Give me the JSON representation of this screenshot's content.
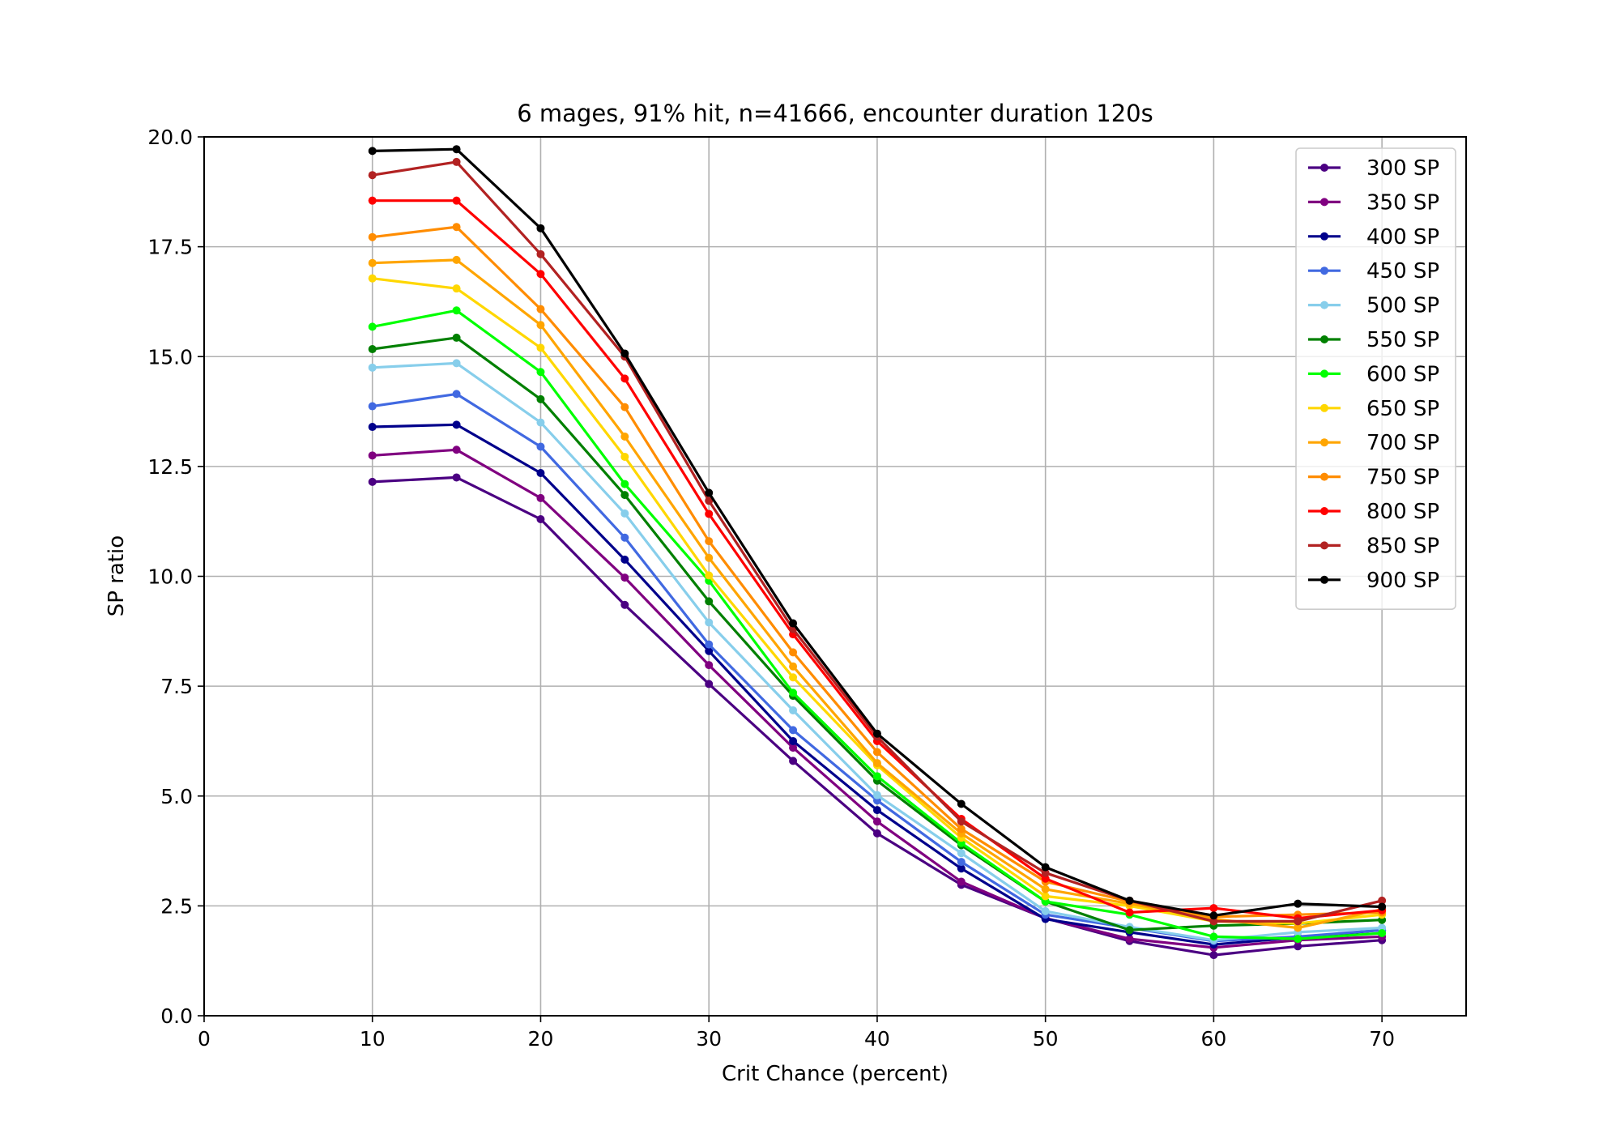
{
  "chart_data": {
    "type": "line",
    "title": "6 mages, 91% hit, n=41666, encounter duration 120s",
    "xlabel": "Crit Chance (percent)",
    "ylabel": "SP ratio",
    "xlim": [
      0,
      75
    ],
    "ylim": [
      0,
      20
    ],
    "xticks": [
      0,
      10,
      20,
      30,
      40,
      50,
      60,
      70
    ],
    "yticks": [
      0.0,
      2.5,
      5.0,
      7.5,
      10.0,
      12.5,
      15.0,
      17.5,
      20.0
    ],
    "ytick_labels": [
      "0.0",
      "2.5",
      "5.0",
      "7.5",
      "10.0",
      "12.5",
      "15.0",
      "17.5",
      "20.0"
    ],
    "grid": true,
    "legend_position": "upper-right",
    "x": [
      10,
      15,
      20,
      25,
      30,
      35,
      40,
      45,
      50,
      55,
      60,
      65,
      70
    ],
    "series": [
      {
        "name": "300 SP",
        "color": "#4b0082",
        "values": [
          12.15,
          12.25,
          11.3,
          9.35,
          7.55,
          5.8,
          4.15,
          2.98,
          2.22,
          1.7,
          1.38,
          1.58,
          1.72
        ]
      },
      {
        "name": "350 SP",
        "color": "#800080",
        "values": [
          12.75,
          12.88,
          11.78,
          9.97,
          7.98,
          6.1,
          4.42,
          3.05,
          2.22,
          1.75,
          1.55,
          1.72,
          1.8
        ]
      },
      {
        "name": "400 SP",
        "color": "#00008b",
        "values": [
          13.4,
          13.45,
          12.35,
          10.38,
          8.3,
          6.25,
          4.68,
          3.35,
          2.2,
          1.9,
          1.62,
          1.78,
          1.95
        ]
      },
      {
        "name": "450 SP",
        "color": "#4169e1",
        "values": [
          13.87,
          14.15,
          12.95,
          10.88,
          8.45,
          6.5,
          4.9,
          3.5,
          2.3,
          2.0,
          1.7,
          1.8,
          1.95
        ]
      },
      {
        "name": "500 SP",
        "color": "#87ceeb",
        "values": [
          14.75,
          14.85,
          13.5,
          11.43,
          8.95,
          6.95,
          5.02,
          3.7,
          2.38,
          2.02,
          1.72,
          1.9,
          2.0
        ]
      },
      {
        "name": "550 SP",
        "color": "#008000",
        "values": [
          15.17,
          15.43,
          14.03,
          11.85,
          9.43,
          7.28,
          5.35,
          3.88,
          2.6,
          1.95,
          2.05,
          2.1,
          2.18
        ]
      },
      {
        "name": "600 SP",
        "color": "#00ff00",
        "values": [
          15.68,
          16.05,
          14.65,
          12.1,
          9.9,
          7.35,
          5.45,
          3.93,
          2.6,
          2.3,
          1.8,
          1.75,
          1.88
        ]
      },
      {
        "name": "650 SP",
        "color": "#ffd700",
        "values": [
          16.78,
          16.55,
          15.2,
          12.72,
          10.02,
          7.7,
          5.7,
          4.05,
          2.72,
          2.5,
          2.15,
          2.1,
          2.3
        ]
      },
      {
        "name": "700 SP",
        "color": "#ffa500",
        "values": [
          17.13,
          17.2,
          15.72,
          13.18,
          10.42,
          7.95,
          5.75,
          4.15,
          2.88,
          2.55,
          2.2,
          2.0,
          2.42
        ]
      },
      {
        "name": "750 SP",
        "color": "#ff8c00",
        "values": [
          17.72,
          17.95,
          16.08,
          13.85,
          10.8,
          8.27,
          6.0,
          4.25,
          3.05,
          2.6,
          2.25,
          2.3,
          2.35
        ]
      },
      {
        "name": "800 SP",
        "color": "#ff0000",
        "values": [
          18.55,
          18.55,
          16.88,
          14.5,
          11.42,
          8.68,
          6.25,
          4.48,
          3.12,
          2.35,
          2.45,
          2.22,
          2.4
        ]
      },
      {
        "name": "850 SP",
        "color": "#b22222",
        "values": [
          19.13,
          19.43,
          17.33,
          15.0,
          11.72,
          8.8,
          6.35,
          4.42,
          3.25,
          2.62,
          2.15,
          2.15,
          2.62
        ]
      },
      {
        "name": "900 SP",
        "color": "#000000",
        "values": [
          19.68,
          19.72,
          17.92,
          15.07,
          11.9,
          8.93,
          6.42,
          4.82,
          3.38,
          2.62,
          2.28,
          2.55,
          2.48
        ]
      }
    ]
  }
}
